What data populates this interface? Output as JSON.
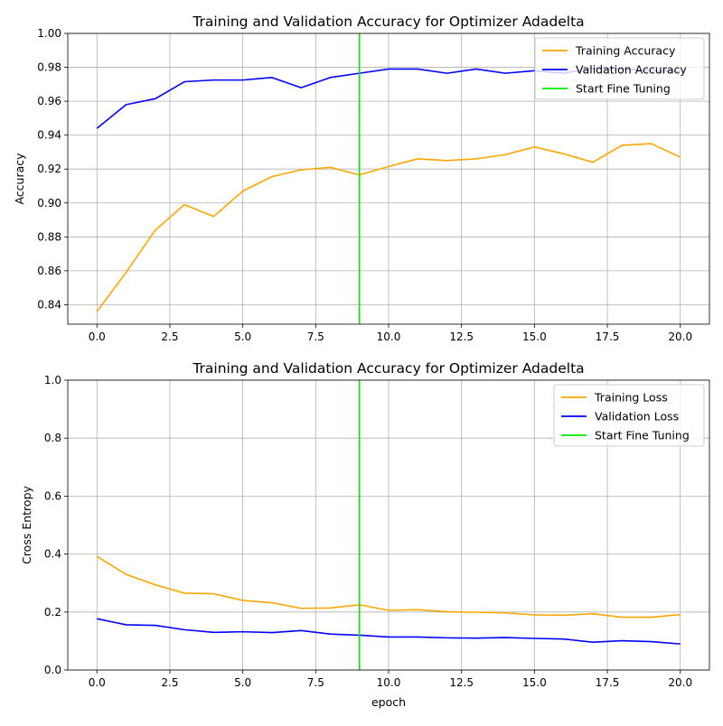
{
  "chart_data": [
    {
      "type": "line",
      "title": "Training and Validation Accuracy for Optimizer Adadelta",
      "xlabel": "",
      "ylabel": "Accuracy",
      "xlim": [
        -1,
        21
      ],
      "ylim": [
        0.8285,
        1.0
      ],
      "xticks": [
        0,
        2.5,
        5,
        7.5,
        10,
        12.5,
        15,
        17.5,
        20
      ],
      "xtick_labels": [
        "0.0",
        "2.5",
        "5.0",
        "7.5",
        "10.0",
        "12.5",
        "15.0",
        "17.5",
        "20.0"
      ],
      "yticks": [
        0.84,
        0.86,
        0.88,
        0.9,
        0.92,
        0.94,
        0.96,
        0.98,
        1.0
      ],
      "ytick_labels": [
        "0.84",
        "0.86",
        "0.88",
        "0.90",
        "0.92",
        "0.94",
        "0.96",
        "0.98",
        "1.00"
      ],
      "grid": true,
      "legend_position": "top-right",
      "x": [
        0,
        1,
        2,
        3,
        4,
        5,
        6,
        7,
        8,
        9,
        10,
        11,
        12,
        13,
        14,
        15,
        16,
        17,
        18,
        19,
        20
      ],
      "series": [
        {
          "name": "Training Accuracy",
          "color": "#ffa500",
          "values": [
            0.836,
            0.859,
            0.884,
            0.899,
            0.892,
            0.907,
            0.9155,
            0.9195,
            0.921,
            0.9165,
            0.9215,
            0.926,
            0.925,
            0.926,
            0.9285,
            0.933,
            0.929,
            0.924,
            0.934,
            0.935,
            0.927
          ]
        },
        {
          "name": "Validation Accuracy",
          "color": "#0000ff",
          "values": [
            0.944,
            0.958,
            0.9615,
            0.9715,
            0.9725,
            0.9725,
            0.974,
            0.968,
            0.974,
            0.9765,
            0.979,
            0.979,
            0.9765,
            0.979,
            0.9765,
            0.978,
            0.9765,
            0.9795,
            0.979,
            0.978,
            0.9775
          ]
        }
      ],
      "vline": {
        "name": "Start Fine Tuning",
        "x": 9,
        "color": "#00ee00"
      }
    },
    {
      "type": "line",
      "title": "Training and Validation Accuracy for Optimizer Adadelta",
      "xlabel": "epoch",
      "ylabel": "Cross Entropy",
      "xlim": [
        -1,
        21
      ],
      "ylim": [
        0.0,
        1.0
      ],
      "xticks": [
        0,
        2.5,
        5,
        7.5,
        10,
        12.5,
        15,
        17.5,
        20
      ],
      "xtick_labels": [
        "0.0",
        "2.5",
        "5.0",
        "7.5",
        "10.0",
        "12.5",
        "15.0",
        "17.5",
        "20.0"
      ],
      "yticks": [
        0.0,
        0.2,
        0.4,
        0.6,
        0.8,
        1.0
      ],
      "ytick_labels": [
        "0.0",
        "0.2",
        "0.4",
        "0.6",
        "0.8",
        "1.0"
      ],
      "grid": true,
      "legend_position": "top-right",
      "x": [
        0,
        1,
        2,
        3,
        4,
        5,
        6,
        7,
        8,
        9,
        10,
        11,
        12,
        13,
        14,
        15,
        16,
        17,
        18,
        19,
        20
      ],
      "series": [
        {
          "name": "Training Loss",
          "color": "#ffa500",
          "values": [
            0.392,
            0.33,
            0.294,
            0.265,
            0.263,
            0.24,
            0.232,
            0.213,
            0.214,
            0.225,
            0.206,
            0.208,
            0.201,
            0.199,
            0.197,
            0.19,
            0.189,
            0.194,
            0.182,
            0.182,
            0.191
          ]
        },
        {
          "name": "Validation Loss",
          "color": "#0000ff",
          "values": [
            0.177,
            0.156,
            0.154,
            0.139,
            0.13,
            0.132,
            0.129,
            0.136,
            0.124,
            0.12,
            0.114,
            0.114,
            0.111,
            0.11,
            0.112,
            0.109,
            0.107,
            0.096,
            0.101,
            0.098,
            0.09
          ]
        }
      ],
      "vline": {
        "name": "Start Fine Tuning",
        "x": 9,
        "color": "#00ee00"
      }
    }
  ]
}
